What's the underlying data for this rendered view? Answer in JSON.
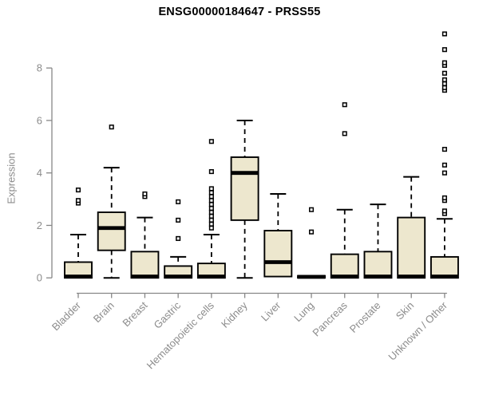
{
  "chart_data": {
    "type": "boxplot",
    "title": "ENSG00000184647 - PRSS55",
    "ylabel": "Expression",
    "xlabel": "",
    "ylim": [
      0,
      9.4
    ],
    "yticks": [
      0,
      2,
      4,
      6,
      8
    ],
    "grid": false,
    "legend": false,
    "colors": {
      "box_fill": "#ede7ce",
      "box_border": "#000000",
      "median": "#000000",
      "whisker": "#000000",
      "outlier_stroke": "#000000",
      "outlier_fill": "#ffffff",
      "axis": "#878787",
      "text": "#8c8c8c",
      "title": "#000000",
      "background": "#ffffff"
    },
    "categories": [
      "Bladder",
      "Brain",
      "Breast",
      "Gastric",
      "Hematopoietic cells",
      "Kidney",
      "Liver",
      "Lung",
      "Pancreas",
      "Prostate",
      "Skin",
      "Unknown / Other"
    ],
    "boxes": [
      {
        "category": "Bladder",
        "whisker_low": 0,
        "q1": 0,
        "median": 0.05,
        "q3": 0.6,
        "whisker_high": 1.65,
        "outliers": [
          2.85,
          2.95,
          3.35
        ]
      },
      {
        "category": "Brain",
        "whisker_low": 0,
        "q1": 1.05,
        "median": 1.9,
        "q3": 2.5,
        "whisker_high": 4.2,
        "outliers": [
          5.75
        ]
      },
      {
        "category": "Breast",
        "whisker_low": 0,
        "q1": 0,
        "median": 0.05,
        "q3": 1.0,
        "whisker_high": 2.3,
        "outliers": [
          3.1,
          3.2
        ]
      },
      {
        "category": "Gastric",
        "whisker_low": 0,
        "q1": 0,
        "median": 0.05,
        "q3": 0.45,
        "whisker_high": 0.8,
        "outliers": [
          1.5,
          2.2,
          2.9
        ]
      },
      {
        "category": "Hematopoietic cells",
        "whisker_low": 0,
        "q1": 0,
        "median": 0.05,
        "q3": 0.55,
        "whisker_high": 1.65,
        "outliers": [
          1.9,
          2.05,
          2.2,
          2.35,
          2.5,
          2.65,
          2.8,
          2.95,
          3.1,
          3.25,
          3.4,
          4.05,
          5.2
        ]
      },
      {
        "category": "Kidney",
        "whisker_low": 0,
        "q1": 2.2,
        "median": 4.0,
        "q3": 4.6,
        "whisker_high": 6.0,
        "outliers": []
      },
      {
        "category": "Liver",
        "whisker_low": 0.05,
        "q1": 0.05,
        "median": 0.6,
        "q3": 1.8,
        "whisker_high": 3.2,
        "outliers": []
      },
      {
        "category": "Lung",
        "whisker_low": 0,
        "q1": 0,
        "median": 0.04,
        "q3": 0.08,
        "whisker_high": 0.08,
        "outliers": [
          1.75,
          2.6
        ]
      },
      {
        "category": "Pancreas",
        "whisker_low": 0,
        "q1": 0,
        "median": 0.05,
        "q3": 0.9,
        "whisker_high": 2.6,
        "outliers": [
          5.5,
          6.6
        ]
      },
      {
        "category": "Prostate",
        "whisker_low": 0,
        "q1": 0,
        "median": 0.05,
        "q3": 1.0,
        "whisker_high": 2.8,
        "outliers": []
      },
      {
        "category": "Skin",
        "whisker_low": 0,
        "q1": 0,
        "median": 0.05,
        "q3": 2.3,
        "whisker_high": 3.85,
        "outliers": []
      },
      {
        "category": "Unknown / Other",
        "whisker_low": 0,
        "q1": 0,
        "median": 0.05,
        "q3": 0.8,
        "whisker_high": 2.25,
        "outliers": [
          2.45,
          2.55,
          2.95,
          3.05,
          4.0,
          4.3,
          4.9,
          7.15,
          7.25,
          7.4,
          7.55,
          7.8,
          8.1,
          8.2,
          8.7,
          9.3
        ]
      }
    ]
  }
}
